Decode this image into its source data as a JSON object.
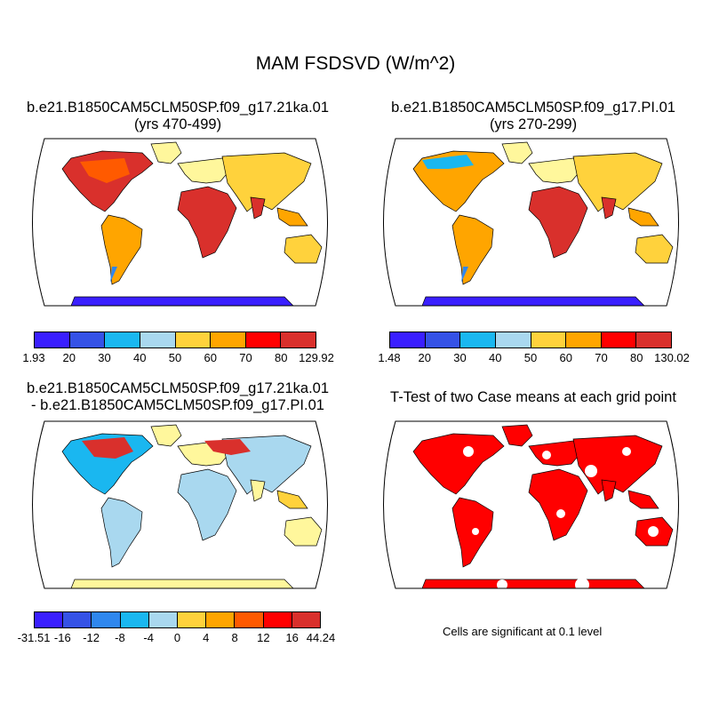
{
  "figure": {
    "title": "MAM FSDSVD (W/m^2)",
    "colors": {
      "palette": [
        "#3a1fff",
        "#3552e6",
        "#2f87ee",
        "#1ab7f0",
        "#a9d8ef",
        "#fff79c",
        "#ffd23c",
        "#ffa500",
        "#ff5a00",
        "#ff0000",
        "#d9302c"
      ],
      "land_high": "#d9302c",
      "land_mid": "#ffa500",
      "land_low": "#fff79c",
      "antarctica_cold": "#3a1fff",
      "significance": "#ff0000",
      "coast": "#000000",
      "outline": "#000000"
    }
  },
  "panels": {
    "case1": {
      "title_line1": "b.e21.B1850CAM5CLM50SP.f09_g17.21ka.01",
      "title_line2": "(yrs 470-499)",
      "colorbar": {
        "min_label": "1.93",
        "max_label": "129.92",
        "tick_labels": [
          "20",
          "30",
          "40",
          "50",
          "60",
          "70",
          "80"
        ]
      }
    },
    "case2": {
      "title_line1": "b.e21.B1850CAM5CLM50SP.f09_g17.PI.01",
      "title_line2": "(yrs 270-299)",
      "colorbar": {
        "min_label": "1.48",
        "max_label": "130.02",
        "tick_labels": [
          "20",
          "30",
          "40",
          "50",
          "60",
          "70",
          "80"
        ]
      }
    },
    "difference": {
      "title_line1": "b.e21.B1850CAM5CLM50SP.f09_g17.21ka.01",
      "title_line2": "- b.e21.B1850CAM5CLM50SP.f09_g17.PI.01",
      "colorbar": {
        "min_label": "-31.51",
        "max_label": "44.24",
        "tick_labels": [
          "-16",
          "-12",
          "-8",
          "-4",
          "0",
          "4",
          "8",
          "12",
          "16"
        ]
      }
    },
    "ttest": {
      "title": "T-Test of two Case means at each grid point",
      "note": "Cells are significant at 0.1 level"
    }
  }
}
